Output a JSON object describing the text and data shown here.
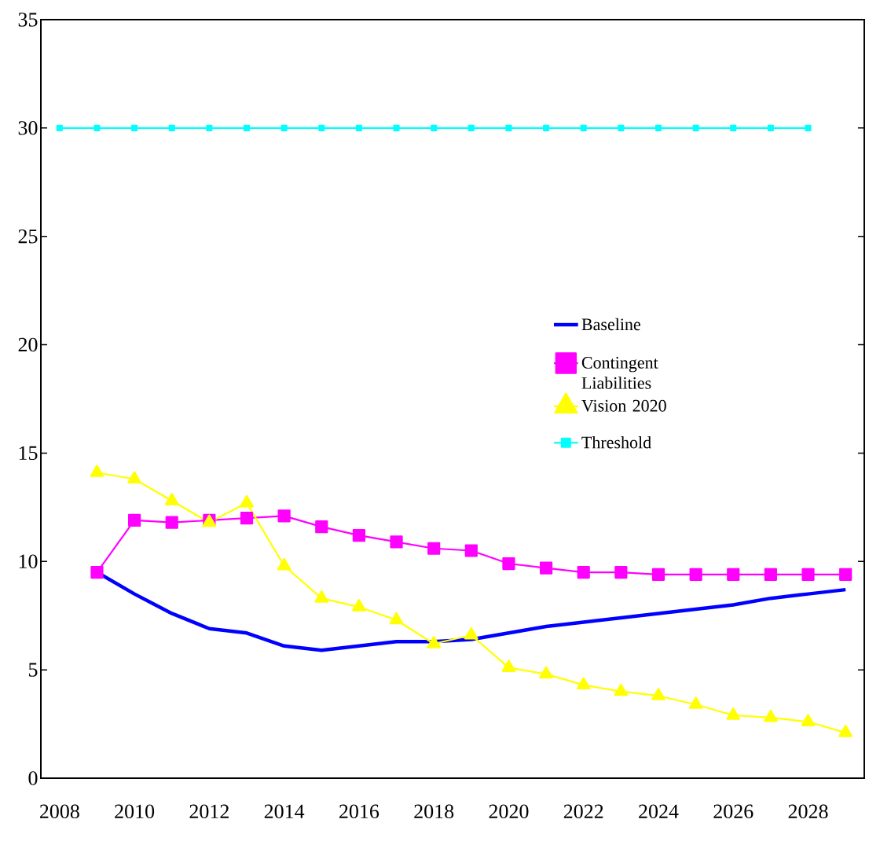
{
  "chart_data": {
    "type": "line",
    "categories": [
      "2008",
      null,
      "2010",
      null,
      "2012",
      null,
      "2014",
      null,
      "2016",
      null,
      "2018",
      null,
      "2020",
      null,
      "2022",
      null,
      "2024",
      null,
      "2026",
      null,
      "2028",
      null
    ],
    "series": [
      {
        "name": "Baseline",
        "color": "#0000ff",
        "marker": "none",
        "values": [
          null,
          9.5,
          8.5,
          7.6,
          6.9,
          6.7,
          6.1,
          5.9,
          6.1,
          6.3,
          6.3,
          6.4,
          6.7,
          7.0,
          7.2,
          7.4,
          7.6,
          7.8,
          8.0,
          8.3,
          8.5,
          8.7
        ]
      },
      {
        "name": "Contingent Liabilities",
        "color": "#ff00ff",
        "marker": "square",
        "values": [
          null,
          9.5,
          11.9,
          11.8,
          11.9,
          12.0,
          12.1,
          11.6,
          11.2,
          10.9,
          10.6,
          10.5,
          9.9,
          9.7,
          9.5,
          9.5,
          9.4,
          9.4,
          9.4,
          9.4,
          9.4,
          9.4
        ]
      },
      {
        "name": "Vision 2020",
        "color": "#ffff00",
        "marker": "triangle",
        "values": [
          null,
          14.1,
          13.8,
          12.8,
          11.8,
          12.7,
          9.8,
          8.3,
          7.9,
          7.3,
          6.2,
          6.6,
          5.1,
          4.8,
          4.3,
          4.0,
          3.8,
          3.4,
          2.9,
          2.8,
          2.6,
          2.1
        ]
      },
      {
        "name": "Threshold",
        "color": "#00ffff",
        "marker": "square",
        "values": [
          30,
          30,
          30,
          30,
          30,
          30,
          30,
          30,
          30,
          30,
          30,
          30,
          30,
          30,
          30,
          30,
          30,
          30,
          30,
          30,
          30,
          null
        ]
      }
    ],
    "ylim": [
      0,
      35
    ],
    "yticks": [
      0,
      5,
      10,
      15,
      20,
      25,
      30,
      35
    ],
    "legend": "right"
  }
}
